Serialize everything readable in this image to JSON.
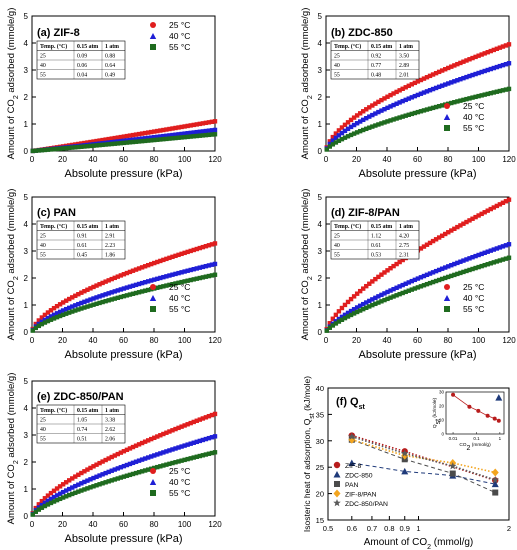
{
  "colors": {
    "c25": "#e01e1e",
    "c40": "#1f1fd6",
    "c55": "#1f6b1f",
    "zif8": "#b81c1c",
    "zdc850": "#1f3a7a",
    "pan": "#4b4b4b",
    "zifpan": "#f3a51f",
    "zdcpan": "#5a5a5a"
  },
  "chart_data": [
    {
      "type": "scatter",
      "title": "(a) ZIF-8",
      "xlabel": "Absolute pressure (kPa)",
      "ylabel": "Amount of CO2 adsorbed (mmole/g)",
      "xlim": [
        0,
        120
      ],
      "ylim": [
        0,
        5
      ],
      "xticks": [
        "0",
        "20",
        "40",
        "60",
        "80",
        "100",
        "120"
      ],
      "yticks": [
        "0",
        "1",
        "2",
        "3",
        "4",
        "5"
      ],
      "legend_placement": "top-right",
      "series": [
        {
          "name": "25 °C",
          "color_key": "c25",
          "end": 1.1,
          "exp": 1.05
        },
        {
          "name": "40 °C",
          "color_key": "c40",
          "end": 0.78,
          "exp": 1.05
        },
        {
          "name": "55 °C",
          "color_key": "c55",
          "end": 0.62,
          "exp": 1.05
        }
      ],
      "table": {
        "header": [
          "Temp. (°C)",
          "0.15 atm",
          "1 atm"
        ],
        "rows": [
          [
            "25",
            "0.09",
            "0.88"
          ],
          [
            "40",
            "0.06",
            "0.64"
          ],
          [
            "55",
            "0.04",
            "0.49"
          ]
        ],
        "placement": "top-left"
      }
    },
    {
      "type": "scatter",
      "title": "(b) ZDC-850",
      "xlabel": "Absolute pressure (kPa)",
      "ylabel": "Amount of CO2 adsorbed (mmole/g)",
      "xlim": [
        0,
        120
      ],
      "ylim": [
        0,
        5
      ],
      "xticks": [
        "0",
        "20",
        "40",
        "60",
        "80",
        "100",
        "120"
      ],
      "yticks": [
        "0",
        "1",
        "2",
        "3",
        "4",
        "5"
      ],
      "legend_placement": "bottom-right",
      "series": [
        {
          "name": "25 °C",
          "color_key": "c25",
          "end": 3.95,
          "exp": 0.62
        },
        {
          "name": "40 °C",
          "color_key": "c40",
          "end": 3.25,
          "exp": 0.65
        },
        {
          "name": "55 °C",
          "color_key": "c55",
          "end": 2.3,
          "exp": 0.68
        }
      ],
      "table": {
        "header": [
          "Temp. (°C)",
          "0.15 atm",
          "1 atm"
        ],
        "rows": [
          [
            "25",
            "0.92",
            "3.50"
          ],
          [
            "40",
            "0.77",
            "2.89"
          ],
          [
            "55",
            "0.48",
            "2.01"
          ]
        ],
        "placement": "top-left"
      }
    },
    {
      "type": "scatter",
      "title": "(c) PAN",
      "xlabel": "Absolute pressure (kPa)",
      "ylabel": "Amount of CO2 adsorbed (mmole/g)",
      "xlim": [
        0,
        120
      ],
      "ylim": [
        0,
        5
      ],
      "xticks": [
        "0",
        "20",
        "40",
        "60",
        "80",
        "100",
        "120"
      ],
      "yticks": [
        "0",
        "1",
        "2",
        "3",
        "4",
        "5"
      ],
      "legend_placement": "bottom-right",
      "series": [
        {
          "name": "25 °C",
          "color_key": "c25",
          "end": 3.28,
          "exp": 0.62
        },
        {
          "name": "40 °C",
          "color_key": "c40",
          "end": 2.52,
          "exp": 0.65
        },
        {
          "name": "55 °C",
          "color_key": "c55",
          "end": 2.12,
          "exp": 0.68
        }
      ],
      "table": {
        "header": [
          "Temp. (°C)",
          "0.15 atm",
          "1 atm"
        ],
        "rows": [
          [
            "25",
            "0.91",
            "2.91"
          ],
          [
            "40",
            "0.61",
            "2.23"
          ],
          [
            "55",
            "0.45",
            "1.86"
          ]
        ],
        "placement": "top-left"
      }
    },
    {
      "type": "scatter",
      "title": "(d) ZIF-8/PAN",
      "xlabel": "Absolute pressure (kPa)",
      "ylabel": "Amount of CO2 adsorbed (mmole/g)",
      "xlim": [
        0,
        120
      ],
      "ylim": [
        0,
        5
      ],
      "xticks": [
        "0",
        "20",
        "40",
        "60",
        "80",
        "100",
        "120"
      ],
      "yticks": [
        "0",
        "1",
        "2",
        "3",
        "4",
        "5"
      ],
      "legend_placement": "bottom-right",
      "series": [
        {
          "name": "25 °C",
          "color_key": "c25",
          "end": 4.9,
          "exp": 0.7
        },
        {
          "name": "40 °C",
          "color_key": "c40",
          "end": 3.25,
          "exp": 0.72
        },
        {
          "name": "55 °C",
          "color_key": "c55",
          "end": 2.75,
          "exp": 0.74
        }
      ],
      "table": {
        "header": [
          "Temp. (°C)",
          "0.15 atm",
          "1 atm"
        ],
        "rows": [
          [
            "25",
            "1.12",
            "4.20"
          ],
          [
            "40",
            "0.61",
            "2.75"
          ],
          [
            "55",
            "0.53",
            "2.31"
          ]
        ],
        "placement": "top-left"
      }
    },
    {
      "type": "scatter",
      "title": "(e) ZDC-850/PAN",
      "xlabel": "Absolute pressure (kPa)",
      "ylabel": "Amount of CO2 adsorbed (mmole/g)",
      "xlim": [
        0,
        120
      ],
      "ylim": [
        0,
        5
      ],
      "xticks": [
        "0",
        "20",
        "40",
        "60",
        "80",
        "100",
        "120"
      ],
      "yticks": [
        "0",
        "1",
        "2",
        "3",
        "4",
        "5"
      ],
      "legend_placement": "bottom-right",
      "series": [
        {
          "name": "25 °C",
          "color_key": "c25",
          "end": 3.78,
          "exp": 0.66
        },
        {
          "name": "40 °C",
          "color_key": "c40",
          "end": 2.95,
          "exp": 0.68
        },
        {
          "name": "55 °C",
          "color_key": "c55",
          "end": 2.36,
          "exp": 0.7
        }
      ],
      "table": {
        "header": [
          "Temp. (°C)",
          "0.15 atm",
          "1 atm"
        ],
        "rows": [
          [
            "25",
            "1.05",
            "3.38"
          ],
          [
            "40",
            "0.74",
            "2.62"
          ],
          [
            "55",
            "0.51",
            "2.06"
          ]
        ],
        "placement": "top-left"
      }
    },
    {
      "type": "scatter",
      "title": "(f) Qst",
      "xlabel": "Amount of CO2 (mmol/g)",
      "ylabel": "Isosteric heat of adsorption, Qst (kJ/mole)",
      "xscale": "log",
      "xlim": [
        0.5,
        2
      ],
      "ylim": [
        15,
        40
      ],
      "xticks": [
        "0.5",
        "0.6",
        "0.7",
        "0.8",
        "0.9",
        "1",
        "2"
      ],
      "yticks": [
        "15",
        "20",
        "25",
        "30",
        "35",
        "40"
      ],
      "legend_placement": "bottom-left",
      "series": [
        {
          "name": "ZIF-8",
          "color_key": "zif8",
          "marker": "circle",
          "line": "dotted",
          "x": [
            0.6,
            0.9,
            1.8
          ],
          "y": [
            31,
            28,
            22.5
          ]
        },
        {
          "name": "ZDC-850",
          "color_key": "zdc850",
          "marker": "triangle",
          "line": "dashed",
          "x": [
            0.6,
            0.9,
            1.3,
            1.8
          ],
          "y": [
            25.8,
            24.2,
            23.4,
            21.8
          ]
        },
        {
          "name": "PAN",
          "color_key": "pan",
          "marker": "square",
          "line": "dashed",
          "x": [
            0.6,
            0.9,
            1.3,
            1.8
          ],
          "y": [
            30.2,
            26.5,
            23.8,
            20.2
          ]
        },
        {
          "name": "ZIF-8/PAN",
          "color_key": "zifpan",
          "marker": "diamond",
          "line": "dotted",
          "x": [
            0.6,
            0.9,
            1.3,
            1.8
          ],
          "y": [
            30.2,
            27.2,
            25.8,
            24
          ]
        },
        {
          "name": "ZDC-850/PAN",
          "color_key": "zdcpan",
          "marker": "star",
          "line": "dotted",
          "x": [
            0.6,
            0.9,
            1.3,
            1.8
          ],
          "y": [
            30.8,
            27.6,
            25.2,
            22.6
          ]
        }
      ],
      "inset": {
        "ylabel": "Qst (kJ/mole)",
        "xlabel": "CO2 (mmol/g)",
        "xscale": "log",
        "xticks": [
          "0.01",
          "0.1",
          "1"
        ],
        "yticks": [
          "0",
          "10",
          "20",
          "30"
        ],
        "ylim": [
          0,
          30
        ],
        "series": [
          {
            "name": "ZIF-8",
            "color_key": "zif8",
            "x": [
              0.01,
              0.05,
              0.12,
              0.3,
              0.6,
              0.9
            ],
            "y": [
              28,
              19.5,
              16.5,
              13,
              11,
              9.5
            ]
          },
          {
            "name": "ZDC-850",
            "color_key": "zdc850",
            "x": [
              0.9
            ],
            "y": [
              26
            ]
          }
        ]
      }
    }
  ]
}
